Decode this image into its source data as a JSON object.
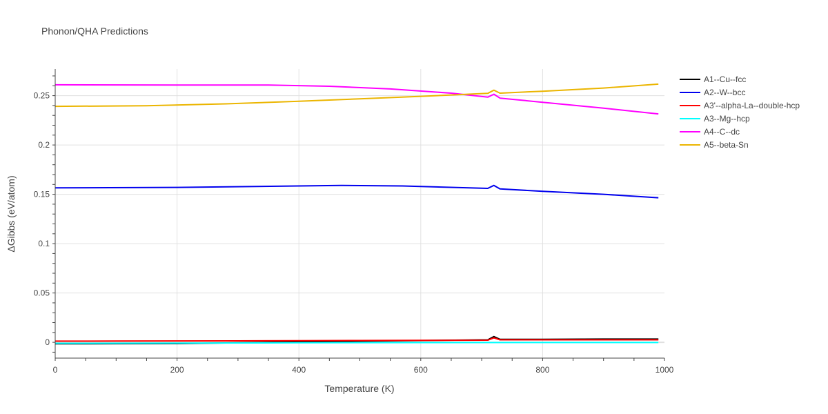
{
  "chart_data": {
    "type": "line",
    "title": "Phonon/QHA Predictions",
    "xlabel": "Temperature (K)",
    "ylabel": "ΔGibbs (eV/atom)",
    "xlim": [
      0,
      1000
    ],
    "ylim": [
      -0.016,
      0.277
    ],
    "x_ticks": [
      0,
      200,
      400,
      600,
      800,
      1000
    ],
    "x_tick_labels": [
      "0",
      "200",
      "400",
      "600",
      "800",
      "1000"
    ],
    "y_ticks": [
      0,
      0.05,
      0.1,
      0.15,
      0.2,
      0.25
    ],
    "y_tick_labels": [
      "0",
      "0.05",
      "0.1",
      "0.15",
      "0.2",
      "0.25"
    ],
    "grid": true,
    "legend_position": "right",
    "series": [
      {
        "name": "A1--Cu--fcc",
        "color": "#000000",
        "x": [
          0,
          100,
          200,
          300,
          400,
          500,
          600,
          710,
          720,
          730,
          800,
          900,
          990
        ],
        "y": [
          -0.0015,
          -0.0014,
          -0.0013,
          -0.0005,
          0.0005,
          0.0012,
          0.0018,
          0.0025,
          0.0058,
          0.003,
          0.0031,
          0.0033,
          0.0033
        ]
      },
      {
        "name": "A2--W--bcc",
        "color": "#0000ee",
        "x": [
          0,
          200,
          470,
          570,
          710,
          720,
          730,
          800,
          900,
          990
        ],
        "y": [
          0.1565,
          0.157,
          0.159,
          0.1585,
          0.156,
          0.159,
          0.1555,
          0.153,
          0.15,
          0.1465
        ]
      },
      {
        "name": "A3'--alpha-La--double-hcp",
        "color": "#ff0000",
        "x": [
          0,
          100,
          200,
          300,
          400,
          500,
          600,
          710,
          720,
          730,
          800,
          900,
          990
        ],
        "y": [
          0.0012,
          0.0013,
          0.0014,
          0.0015,
          0.0016,
          0.0018,
          0.002,
          0.0022,
          0.0045,
          0.0025,
          0.0025,
          0.0025,
          0.0025
        ]
      },
      {
        "name": "A3--Mg--hcp",
        "color": "#00ffff",
        "x": [
          0,
          200,
          400,
          600,
          800,
          990
        ],
        "y": [
          -0.001,
          -0.0008,
          -0.0005,
          -0.0003,
          -0.0002,
          -0.0002
        ]
      },
      {
        "name": "A4--C--dc",
        "color": "#ff00ff",
        "x": [
          0,
          200,
          350,
          450,
          550,
          650,
          710,
          720,
          730,
          800,
          900,
          990
        ],
        "y": [
          0.261,
          0.2608,
          0.2607,
          0.2595,
          0.2568,
          0.2525,
          0.2485,
          0.2515,
          0.2475,
          0.2433,
          0.2373,
          0.2315
        ]
      },
      {
        "name": "A5--beta-Sn",
        "color": "#ebb500",
        "x": [
          0,
          150,
          280,
          400,
          500,
          600,
          710,
          720,
          730,
          800,
          900,
          990
        ],
        "y": [
          0.2392,
          0.2397,
          0.2417,
          0.2443,
          0.2468,
          0.2493,
          0.2523,
          0.2555,
          0.2525,
          0.2545,
          0.2577,
          0.2617
        ]
      }
    ]
  }
}
